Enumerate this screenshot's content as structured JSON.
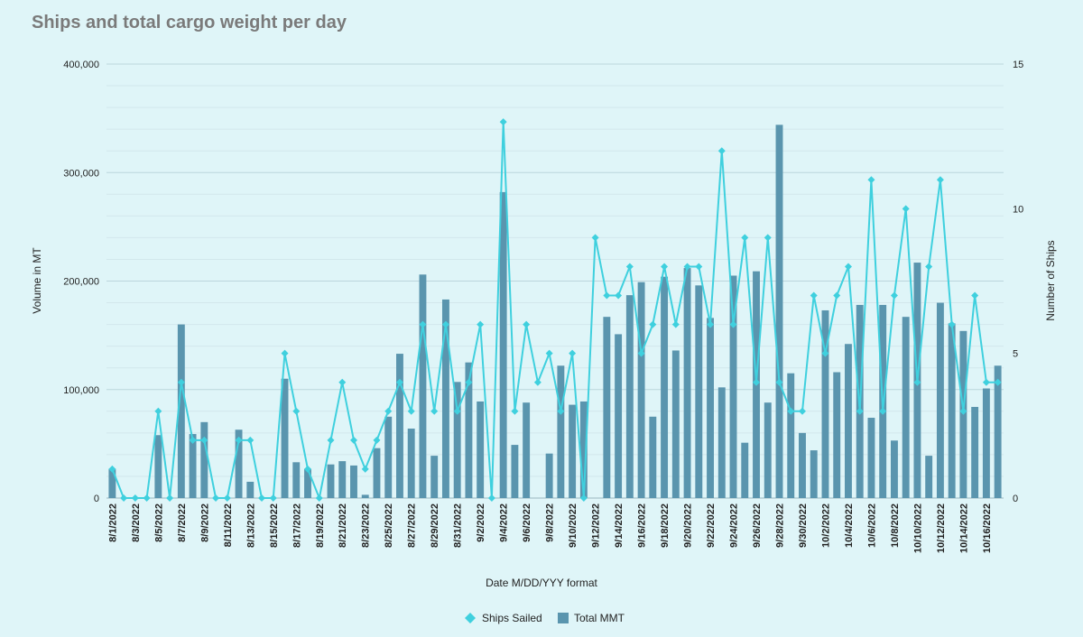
{
  "chart_data": {
    "type": "bar+line",
    "title": "Ships and total cargo weight per day",
    "xlabel": "Date M/DD/YYY format",
    "ylabel_left": "Volume in MT",
    "ylabel_right": "Number of Ships",
    "ylim_left": [
      0,
      400000
    ],
    "ylim_right": [
      0,
      15
    ],
    "yticks_left": [
      "0",
      "100,000",
      "200,000",
      "300,000",
      "400,000"
    ],
    "yticks_right": [
      "0",
      "5",
      "10",
      "15"
    ],
    "grid": true,
    "legend_position": "bottom",
    "colors": {
      "background": "#dff5f8",
      "bar": "#5a95ae",
      "line": "#3fd0de",
      "grid": "#c7dde2",
      "title": "#7a7a7a"
    },
    "categories": [
      "8/1/2022",
      "8/2/2022",
      "8/3/2022",
      "8/4/2022",
      "8/5/2022",
      "8/6/2022",
      "8/7/2022",
      "8/8/2022",
      "8/9/2022",
      "8/10/2022",
      "8/11/2022",
      "8/12/2022",
      "8/13/2022",
      "8/14/2022",
      "8/15/2022",
      "8/16/2022",
      "8/17/2022",
      "8/18/2022",
      "8/19/2022",
      "8/20/2022",
      "8/21/2022",
      "8/22/2022",
      "8/23/2022",
      "8/24/2022",
      "8/25/2022",
      "8/26/2022",
      "8/27/2022",
      "8/28/2022",
      "8/29/2022",
      "8/30/2022",
      "8/31/2022",
      "9/1/2022",
      "9/2/2022",
      "9/3/2022",
      "9/4/2022",
      "9/5/2022",
      "9/6/2022",
      "9/7/2022",
      "9/8/2022",
      "9/9/2022",
      "9/10/2022",
      "9/11/2022",
      "9/12/2022",
      "9/13/2022",
      "9/14/2022",
      "9/15/2022",
      "9/16/2022",
      "9/17/2022",
      "9/18/2022",
      "9/19/2022",
      "9/20/2022",
      "9/21/2022",
      "9/22/2022",
      "9/23/2022",
      "9/24/2022",
      "9/25/2022",
      "9/26/2022",
      "9/27/2022",
      "9/28/2022",
      "9/29/2022",
      "9/30/2022",
      "10/1/2022",
      "10/2/2022",
      "10/3/2022",
      "10/4/2022",
      "10/5/2022",
      "10/6/2022",
      "10/7/2022",
      "10/8/2022",
      "10/9/2022",
      "10/10/2022",
      "10/11/2022",
      "10/12/2022",
      "10/13/2022",
      "10/14/2022",
      "10/15/2022",
      "10/16/2022",
      "10/17/2022"
    ],
    "shown_labels": [
      "8/1/2022",
      "8/3/2022",
      "8/5/2022",
      "8/7/2022",
      "8/9/2022",
      "8/11/2022",
      "8/13/2022",
      "8/15/2022",
      "8/17/2022",
      "8/19/2022",
      "8/21/2022",
      "8/23/2022",
      "8/25/2022",
      "8/27/2022",
      "8/29/2022",
      "8/31/2022",
      "9/2/2022",
      "9/4/2022",
      "9/6/2022",
      "9/8/2022",
      "9/10/2022",
      "9/12/2022",
      "9/14/2022",
      "9/16/2022",
      "9/18/2022",
      "9/20/2022",
      "9/22/2022",
      "9/24/2022",
      "9/26/2022",
      "9/28/2022",
      "9/30/2022",
      "10/2/2022",
      "10/4/2022",
      "10/6/2022",
      "10/8/2022",
      "10/10/2022",
      "10/12/2022",
      "10/14/2022",
      "10/16/2022"
    ],
    "series": [
      {
        "name": "Total MMT",
        "type": "bar",
        "axis": "left",
        "values": [
          27000,
          0,
          0,
          0,
          58000,
          0,
          160000,
          59000,
          70000,
          0,
          0,
          63000,
          15000,
          0,
          0,
          110000,
          33000,
          27000,
          0,
          31000,
          34000,
          30000,
          3000,
          46000,
          75000,
          133000,
          64000,
          206000,
          39000,
          183000,
          107000,
          125000,
          89000,
          0,
          282000,
          49000,
          88000,
          0,
          41000,
          122000,
          86000,
          89000,
          0,
          167000,
          151000,
          187000,
          199000,
          75000,
          204000,
          136000,
          212000,
          196000,
          166000,
          102000,
          205000,
          51000,
          209000,
          88000,
          344000,
          115000,
          60000,
          44000,
          173000,
          116000,
          142000,
          178000,
          74000,
          178000,
          53000,
          167000,
          217000,
          39000,
          180000,
          161000,
          154000,
          84000,
          101000,
          122000
        ]
      },
      {
        "name": "Ships Sailed",
        "type": "line",
        "axis": "right",
        "values": [
          1,
          0,
          0,
          0,
          3,
          0,
          4,
          2,
          2,
          0,
          0,
          2,
          2,
          0,
          0,
          5,
          3,
          1,
          0,
          2,
          4,
          2,
          1,
          2,
          3,
          4,
          3,
          6,
          3,
          6,
          3,
          4,
          6,
          0,
          13,
          3,
          6,
          4,
          5,
          3,
          5,
          0,
          9,
          7,
          7,
          8,
          5,
          6,
          8,
          6,
          8,
          8,
          6,
          12,
          6,
          9,
          4,
          9,
          4,
          3,
          3,
          7,
          5,
          7,
          8,
          3,
          11,
          3,
          7,
          10,
          4,
          8,
          11,
          6,
          3,
          7,
          4,
          4
        ]
      }
    ]
  }
}
